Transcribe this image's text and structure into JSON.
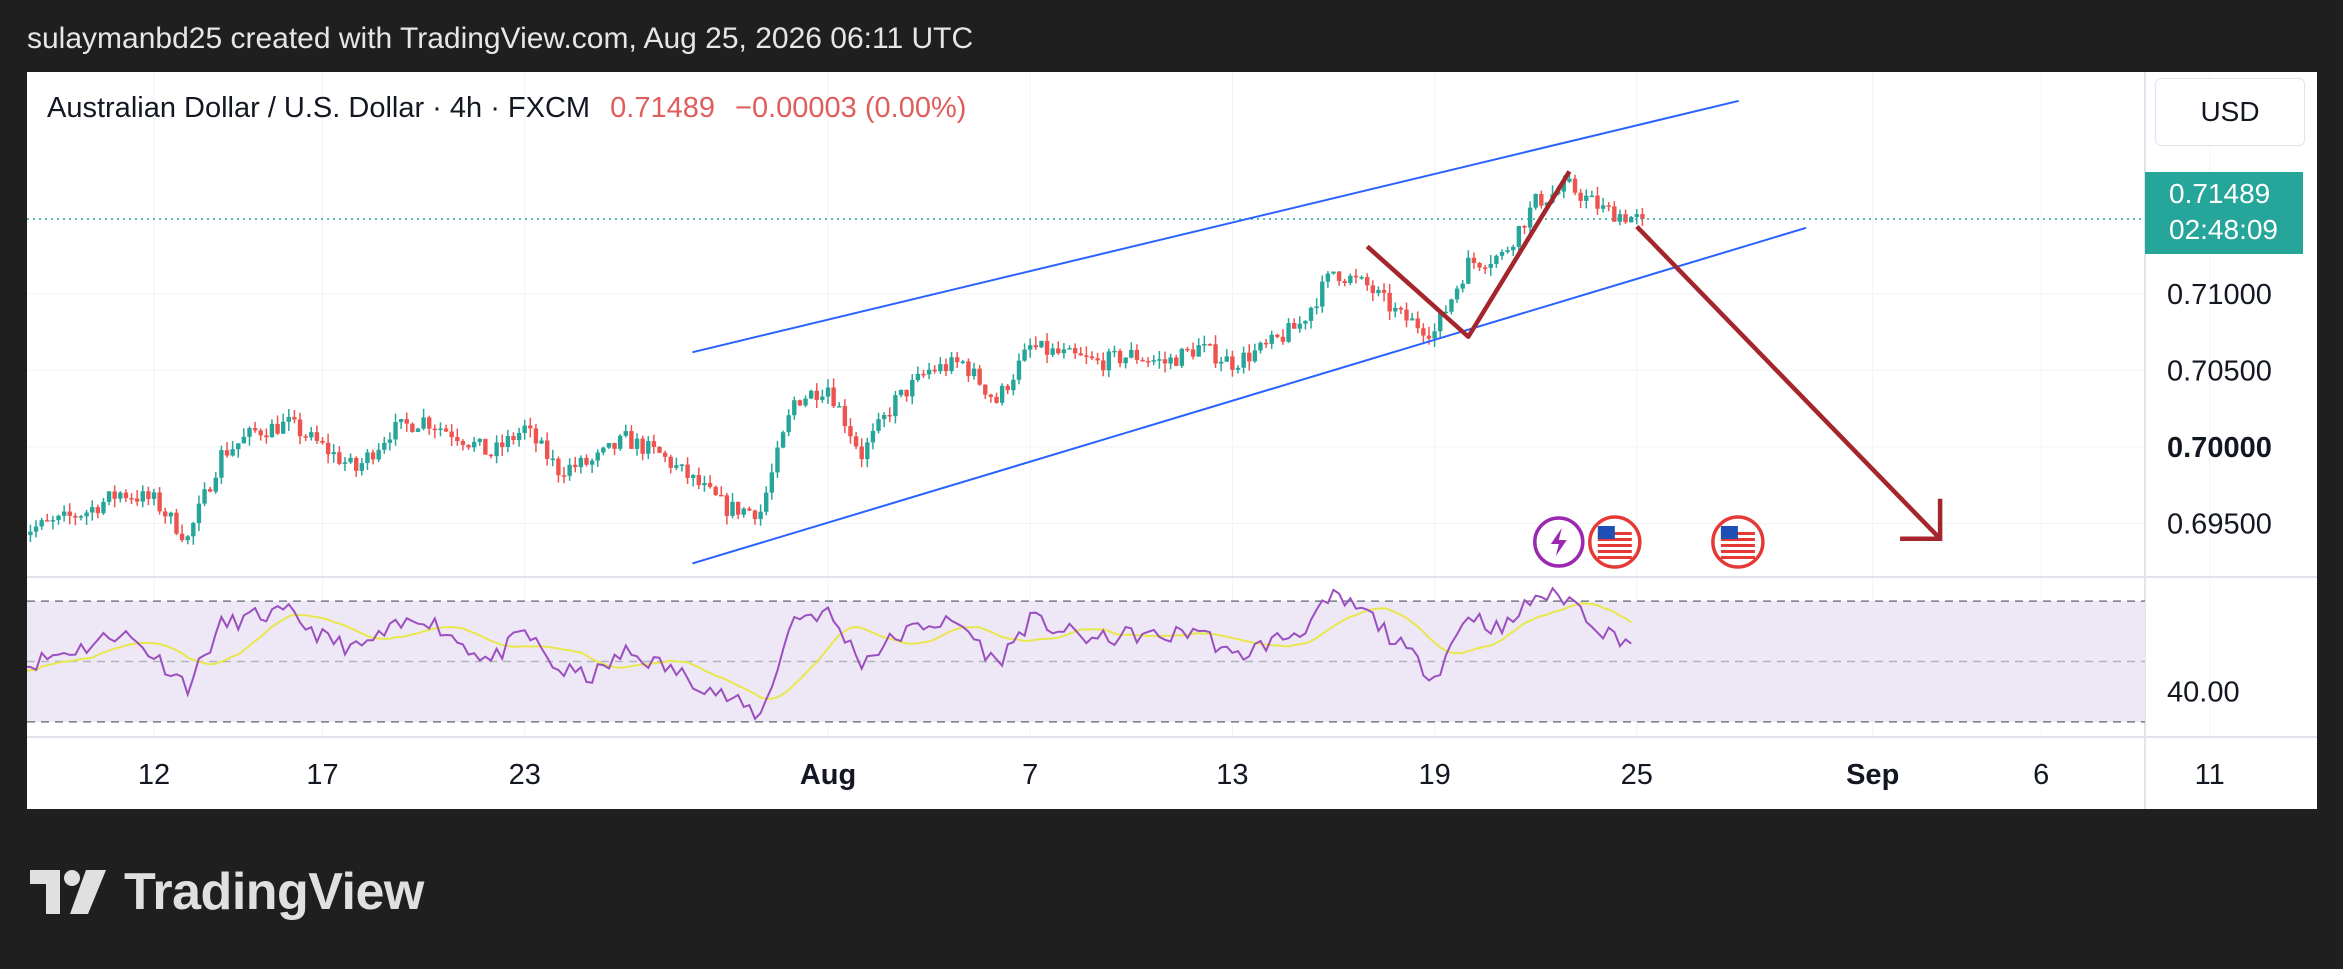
{
  "caption": "sulaymanbd25 created with TradingView.com, Aug 25, 2026 06:11 UTC",
  "legend": {
    "symbol": "Australian Dollar / U.S. Dollar · 4h · FXCM",
    "price": "0.71489",
    "change": "−0.00003 (0.00%)"
  },
  "currency": "USD",
  "price_tag": {
    "price": "0.71489",
    "countdown": "02:48:09"
  },
  "brand": "TradingView",
  "colors": {
    "up": "#26a69a",
    "down": "#ef5350",
    "channel": "#2962ff",
    "arrow": "#a4262c",
    "rsi": "#9c4fbf",
    "rsi_ma": "#e8e84c",
    "rsi_band": "#ede7f6",
    "price_tag": "#26a69a"
  },
  "chart_data": {
    "type": "candlestick",
    "timeframe": "4h",
    "x_ticks": [
      {
        "label": "12",
        "date": "2026-07-12"
      },
      {
        "label": "17",
        "date": "2026-07-17"
      },
      {
        "label": "23",
        "date": "2026-07-23"
      },
      {
        "label": "Aug",
        "date": "2026-08-01",
        "bold": true
      },
      {
        "label": "7",
        "date": "2026-08-07"
      },
      {
        "label": "13",
        "date": "2026-08-13"
      },
      {
        "label": "19",
        "date": "2026-08-19"
      },
      {
        "label": "25",
        "date": "2026-08-25"
      },
      {
        "label": "Sep",
        "date": "2026-09-01",
        "bold": true
      },
      {
        "label": "6",
        "date": "2026-09-06"
      },
      {
        "label": "11",
        "date": "2026-09-11"
      }
    ],
    "y_ticks": [
      {
        "label": "0.71000",
        "value": 0.71
      },
      {
        "label": "0.70500",
        "value": 0.705
      },
      {
        "label": "0.70000",
        "value": 0.7,
        "bold": true
      },
      {
        "label": "0.69500",
        "value": 0.695
      }
    ],
    "ylim": [
      0.6915,
      0.7245
    ],
    "last_price": 0.71489,
    "price_path": [
      [
        "2026-07-08",
        0.6945
      ],
      [
        "2026-07-09",
        0.695
      ],
      [
        "2026-07-10",
        0.6958
      ],
      [
        "2026-07-11",
        0.697
      ],
      [
        "2026-07-12",
        0.6965
      ],
      [
        "2026-07-13",
        0.694
      ],
      [
        "2026-07-14",
        0.6995
      ],
      [
        "2026-07-15",
        0.701
      ],
      [
        "2026-07-16",
        0.7015
      ],
      [
        "2026-07-17",
        0.7
      ],
      [
        "2026-07-18",
        0.6985
      ],
      [
        "2026-07-19",
        0.701
      ],
      [
        "2026-07-20",
        0.7018
      ],
      [
        "2026-07-21",
        0.7008
      ],
      [
        "2026-07-22",
        0.6995
      ],
      [
        "2026-07-23",
        0.7012
      ],
      [
        "2026-07-24",
        0.6985
      ],
      [
        "2026-07-25",
        0.699
      ],
      [
        "2026-07-26",
        0.7005
      ],
      [
        "2026-07-27",
        0.6995
      ],
      [
        "2026-07-28",
        0.6978
      ],
      [
        "2026-07-29",
        0.696
      ],
      [
        "2026-07-30",
        0.6958
      ],
      [
        "2026-07-31",
        0.703
      ],
      [
        "2026-08-01",
        0.704
      ],
      [
        "2026-08-02",
        0.6995
      ],
      [
        "2026-08-03",
        0.703
      ],
      [
        "2026-08-04",
        0.705
      ],
      [
        "2026-08-05",
        0.7055
      ],
      [
        "2026-08-06",
        0.703
      ],
      [
        "2026-08-07",
        0.7065
      ],
      [
        "2026-08-08",
        0.706
      ],
      [
        "2026-08-09",
        0.7055
      ],
      [
        "2026-08-10",
        0.706
      ],
      [
        "2026-08-11",
        0.7055
      ],
      [
        "2026-08-12",
        0.7065
      ],
      [
        "2026-08-13",
        0.7055
      ],
      [
        "2026-08-14",
        0.7065
      ],
      [
        "2026-08-15",
        0.708
      ],
      [
        "2026-08-16",
        0.7115
      ],
      [
        "2026-08-17",
        0.7105
      ],
      [
        "2026-08-18",
        0.7085
      ],
      [
        "2026-08-19",
        0.7075
      ],
      [
        "2026-08-20",
        0.712
      ],
      [
        "2026-08-21",
        0.7125
      ],
      [
        "2026-08-22",
        0.716
      ],
      [
        "2026-08-23",
        0.717
      ],
      [
        "2026-08-24",
        0.7155
      ],
      [
        "2026-08-25",
        0.71489
      ]
    ],
    "rsi": {
      "y_ticks": [
        {
          "label": "40.00",
          "value": 40
        }
      ],
      "band": [
        30,
        70
      ],
      "mid": 50,
      "ylim": [
        25,
        78
      ],
      "path": [
        [
          "2026-07-08",
          48
        ],
        [
          "2026-07-09",
          52
        ],
        [
          "2026-07-10",
          55
        ],
        [
          "2026-07-11",
          60
        ],
        [
          "2026-07-12",
          52
        ],
        [
          "2026-07-13",
          42
        ],
        [
          "2026-07-14",
          62
        ],
        [
          "2026-07-15",
          65
        ],
        [
          "2026-07-16",
          66
        ],
        [
          "2026-07-17",
          58
        ],
        [
          "2026-07-18",
          54
        ],
        [
          "2026-07-19",
          60
        ],
        [
          "2026-07-20",
          65
        ],
        [
          "2026-07-21",
          57
        ],
        [
          "2026-07-22",
          50
        ],
        [
          "2026-07-23",
          60
        ],
        [
          "2026-07-24",
          47
        ],
        [
          "2026-07-25",
          45
        ],
        [
          "2026-07-26",
          53
        ],
        [
          "2026-07-27",
          49
        ],
        [
          "2026-07-28",
          44
        ],
        [
          "2026-07-29",
          38
        ],
        [
          "2026-07-30",
          32
        ],
        [
          "2026-07-31",
          65
        ],
        [
          "2026-08-01",
          66
        ],
        [
          "2026-08-02",
          50
        ],
        [
          "2026-08-03",
          58
        ],
        [
          "2026-08-04",
          63
        ],
        [
          "2026-08-05",
          62
        ],
        [
          "2026-08-06",
          49
        ],
        [
          "2026-08-07",
          64
        ],
        [
          "2026-08-08",
          60
        ],
        [
          "2026-08-09",
          57
        ],
        [
          "2026-08-10",
          59
        ],
        [
          "2026-08-11",
          58
        ],
        [
          "2026-08-12",
          61
        ],
        [
          "2026-08-13",
          51
        ],
        [
          "2026-08-14",
          56
        ],
        [
          "2026-08-15",
          60
        ],
        [
          "2026-08-16",
          71
        ],
        [
          "2026-08-17",
          66
        ],
        [
          "2026-08-18",
          55
        ],
        [
          "2026-08-19",
          45
        ],
        [
          "2026-08-20",
          66
        ],
        [
          "2026-08-21",
          60
        ],
        [
          "2026-08-22",
          72
        ],
        [
          "2026-08-23",
          71
        ],
        [
          "2026-08-24",
          60
        ],
        [
          "2026-08-25",
          56
        ]
      ]
    },
    "drawings": {
      "channel_upper": [
        [
          "2026-07-28",
          0.7062
        ],
        [
          "2026-08-28",
          0.7226
        ]
      ],
      "channel_lower": [
        [
          "2026-07-28",
          0.6924
        ],
        [
          "2026-08-30",
          0.7143
        ]
      ],
      "zigzag": [
        [
          "2026-08-17",
          0.7131
        ],
        [
          "2026-08-20",
          0.7072
        ],
        [
          "2026-08-23",
          0.718
        ]
      ],
      "projection_arrow": [
        [
          "2026-08-25",
          0.7144
        ],
        [
          "2026-09-03",
          0.694
        ]
      ]
    },
    "event_icons": [
      {
        "name": "lightning-event-icon",
        "date": "2026-08-25"
      },
      {
        "name": "us-flag-event-icon",
        "date": "2026-08-25"
      },
      {
        "name": "us-flag-event-icon",
        "date": "2026-08-28"
      }
    ]
  }
}
